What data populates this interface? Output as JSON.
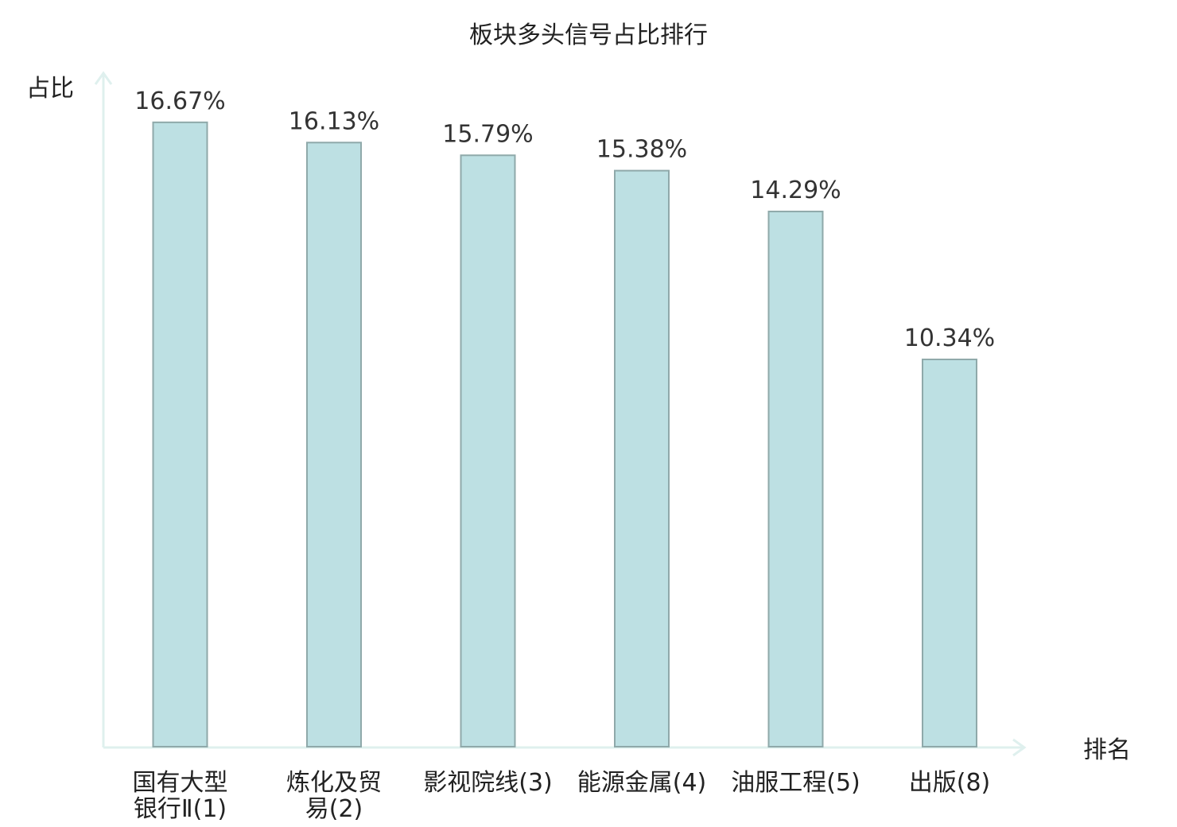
{
  "chart_data": {
    "type": "bar",
    "title": "板块多头信号占比排行",
    "ylabel": "占比",
    "xlabel": "排名",
    "categories": [
      [
        "国有大型",
        "银行Ⅱ(1)"
      ],
      [
        "炼化及贸",
        "易(2)"
      ],
      [
        "影视院线(3)"
      ],
      [
        "能源金属(4)"
      ],
      [
        "油服工程(5)"
      ],
      [
        "出版(8)"
      ]
    ],
    "values": [
      16.67,
      16.13,
      15.79,
      15.38,
      14.29,
      10.34
    ],
    "value_labels": [
      "16.67%",
      "16.13%",
      "15.79%",
      "15.38%",
      "14.29%",
      "10.34%"
    ],
    "highlight_index": 5,
    "ylim": [
      0,
      18
    ],
    "grid": false,
    "colors": {
      "bar_fill": "#bde0e3",
      "bar_stroke": "#8fa9aa",
      "axis": "#dff0ee",
      "highlight_label": "#e00000",
      "text": "#222222"
    }
  }
}
